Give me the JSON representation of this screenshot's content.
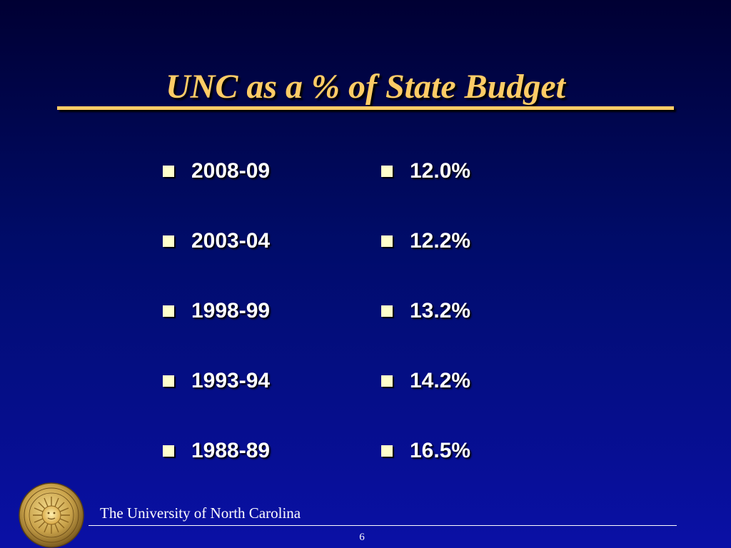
{
  "slide": {
    "title": "UNC as a % of State Budget",
    "years": [
      "2008-09",
      "2003-04",
      "1998-99",
      "1993-94",
      "1988-89"
    ],
    "percentages": [
      "12.0%",
      "12.2%",
      "13.2%",
      "14.2%",
      "16.5%"
    ],
    "footer": "The University of North Carolina",
    "page_number": "6"
  },
  "colors": {
    "background_top": "#000033",
    "background_bottom": "#0a10a6",
    "title": "#ffcc66",
    "bullet": "#ffffcc",
    "text": "#ffffff"
  },
  "icons": {
    "seal": "university-seal-icon",
    "bullet": "square-bullet-icon"
  }
}
